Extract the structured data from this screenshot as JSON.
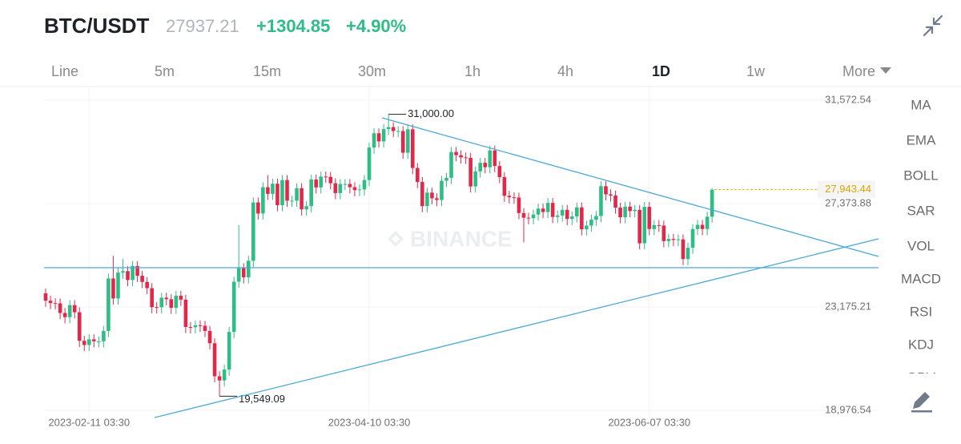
{
  "header": {
    "pair": "BTC/USDT",
    "last_price": "27937.21",
    "change": "+1304.85",
    "change_percent": "+4.90%"
  },
  "tabs": [
    "Line",
    "5m",
    "15m",
    "30m",
    "1h",
    "4h",
    "1D",
    "1w",
    "More"
  ],
  "active_tab": 6,
  "indicators": [
    "MA",
    "EMA",
    "BOLL",
    "SAR",
    "VOL",
    "MACD",
    "RSI",
    "KDJ",
    "OBV"
  ],
  "watermark": "BINANCE",
  "chart_data": {
    "type": "candlestick",
    "categories": [
      null,
      null,
      null,
      null,
      null,
      null,
      null,
      null,
      null,
      "2023-02-11 03:30",
      null,
      null,
      null,
      null,
      null,
      null,
      null,
      null,
      null,
      null,
      null,
      null,
      null,
      null,
      null,
      null,
      null,
      null,
      null,
      null,
      null,
      null,
      null,
      null,
      null,
      null,
      null,
      null,
      null,
      null,
      null,
      null,
      null,
      null,
      null,
      null,
      null,
      null,
      null,
      null,
      null,
      null,
      null,
      null,
      null,
      null,
      null,
      null,
      null,
      null,
      null,
      null,
      null,
      null,
      null,
      null,
      null,
      "2023-04-10 03:30",
      null,
      null,
      null,
      null,
      null,
      null,
      null,
      null,
      null,
      null,
      null,
      null,
      null,
      null,
      null,
      null,
      null,
      null,
      null,
      null,
      null,
      null,
      null,
      null,
      null,
      null,
      null,
      null,
      null,
      null,
      null,
      null,
      null,
      null,
      null,
      null,
      null,
      null,
      null,
      null,
      null,
      null,
      null,
      null,
      null,
      null,
      null,
      null,
      null,
      null,
      null,
      null,
      null,
      null,
      null,
      null,
      null,
      "2023-06-07 03:30",
      null,
      null,
      null,
      null,
      null,
      null,
      null,
      null,
      null,
      null,
      null,
      null,
      null
    ],
    "open": [
      23730,
      23430,
      23330,
      23320,
      22930,
      22760,
      23250,
      22960,
      21800,
      21630,
      21860,
      21780,
      21780,
      22200,
      24330,
      23520,
      24570,
      24630,
      24270,
      24840,
      24440,
      24190,
      23940,
      23170,
      23160,
      23550,
      23490,
      23140,
      23630,
      23470,
      22360,
      22350,
      22430,
      22410,
      22200,
      21700,
      20360,
      20190,
      20630,
      22160,
      24200,
      24750,
      24380,
      25050,
      27420,
      26970,
      28040,
      27770,
      28180,
      27310,
      28330,
      27490,
      27490,
      28000,
      27140,
      27270,
      28350,
      28030,
      28470,
      28460,
      28200,
      27800,
      28170,
      28170,
      28040,
      27920,
      27950,
      28330,
      29650,
      30230,
      29900,
      30400,
      30480,
      30320,
      30320,
      29440,
      30390,
      28820,
      28250,
      27270,
      27820,
      27590,
      27520,
      28300,
      28420,
      29470,
      29340,
      29250,
      29230,
      28070,
      28680,
      29030,
      28850,
      29530,
      28900,
      28450,
      27690,
      27630,
      27620,
      26990,
      26800,
      26780,
      26930,
      27170,
      27030,
      27400,
      26830,
      26890,
      27120,
      26750,
      26850,
      27220,
      26330,
      26480,
      26720,
      26870,
      28080,
      27750,
      27700,
      27210,
      26820,
      27250,
      27070,
      27120,
      25760,
      27240,
      26340,
      26500,
      26480,
      25850,
      25940,
      25900,
      25920,
      25120,
      25580,
      26340,
      26510,
      26340,
      26840
    ],
    "high": [
      23930,
      23630,
      23530,
      23520,
      23130,
      23450,
      23450,
      23160,
      22000,
      22060,
      22060,
      21980,
      22400,
      24530,
      25250,
      24770,
      25120,
      24830,
      25040,
      25040,
      24640,
      24390,
      24140,
      23370,
      23750,
      23750,
      23690,
      23830,
      23830,
      23670,
      22560,
      22630,
      22630,
      22610,
      22400,
      21900,
      20560,
      20830,
      22360,
      24400,
      26500,
      24950,
      25250,
      27620,
      27620,
      28240,
      28530,
      28380,
      28380,
      28530,
      28530,
      27690,
      28200,
      28200,
      27470,
      28550,
      28550,
      28670,
      28670,
      28660,
      28400,
      28370,
      28370,
      28370,
      28240,
      28150,
      28530,
      29850,
      30430,
      30430,
      30600,
      31000,
      30680,
      30520,
      30520,
      30590,
      30590,
      29020,
      28450,
      28020,
      28020,
      27790,
      28500,
      28620,
      29670,
      29670,
      29540,
      29450,
      29430,
      28880,
      29230,
      29230,
      29730,
      29730,
      29100,
      28650,
      27890,
      27830,
      27820,
      27190,
      27000,
      27130,
      27370,
      27370,
      27600,
      27600,
      27090,
      27320,
      27320,
      27050,
      27420,
      27420,
      26680,
      26920,
      27070,
      28280,
      28280,
      27950,
      27900,
      27410,
      27450,
      27450,
      27320,
      27320,
      27440,
      27440,
      26700,
      26700,
      26680,
      26140,
      26140,
      26120,
      26120,
      25780,
      26540,
      26710,
      26710,
      27040,
      28000
    ],
    "low": [
      23180,
      23080,
      23070,
      22680,
      22510,
      22510,
      22710,
      21550,
      21380,
      21380,
      21530,
      21530,
      21530,
      21950,
      23270,
      23270,
      24320,
      24020,
      24020,
      24190,
      23940,
      23690,
      22920,
      22910,
      22910,
      23240,
      22890,
      22890,
      23220,
      22110,
      22100,
      22100,
      22160,
      21950,
      21450,
      20110,
      19549.09,
      19940,
      20380,
      21910,
      23950,
      24130,
      24130,
      24800,
      26720,
      26720,
      27520,
      27520,
      27060,
      27060,
      27240,
      27240,
      27240,
      26890,
      26890,
      27020,
      27780,
      27780,
      28210,
      27950,
      27550,
      27550,
      27920,
      27790,
      27670,
      27670,
      27700,
      28080,
      29400,
      29650,
      29650,
      30150,
      30070,
      30070,
      29190,
      29190,
      28570,
      28000,
      27020,
      27020,
      27340,
      27270,
      27270,
      28050,
      28170,
      29090,
      29000,
      28980,
      27820,
      27820,
      28430,
      28600,
      28600,
      28650,
      28200,
      27440,
      27380,
      27370,
      26740,
      25800,
      26530,
      26530,
      26680,
      26780,
      26780,
      26580,
      26580,
      26640,
      26500,
      26500,
      26600,
      26080,
      26080,
      26230,
      26470,
      26620,
      27500,
      27450,
      26960,
      26570,
      26570,
      26820,
      26820,
      25510,
      25510,
      26090,
      26090,
      26230,
      25600,
      25600,
      25650,
      25650,
      24870,
      24870,
      25330,
      26090,
      26090,
      26090,
      26600
    ],
    "close": [
      23430,
      23330,
      23320,
      22930,
      22760,
      23250,
      22960,
      21800,
      21630,
      21860,
      21780,
      21780,
      22200,
      24330,
      23520,
      24570,
      24630,
      24270,
      24840,
      24440,
      24190,
      23940,
      23170,
      23160,
      23550,
      23490,
      23140,
      23630,
      23470,
      22360,
      22350,
      22430,
      22410,
      22200,
      21700,
      20360,
      20190,
      20630,
      22160,
      24200,
      24750,
      24380,
      25050,
      27420,
      26970,
      28040,
      27770,
      28180,
      27310,
      28330,
      27490,
      27490,
      28000,
      27140,
      27270,
      28350,
      28030,
      28470,
      28460,
      28200,
      27800,
      28170,
      28170,
      28040,
      27920,
      27950,
      28330,
      29650,
      30230,
      29900,
      30400,
      30480,
      30320,
      30320,
      29440,
      30390,
      28820,
      28250,
      27270,
      27820,
      27590,
      27520,
      28300,
      28420,
      29470,
      29340,
      29250,
      29230,
      28070,
      28680,
      29030,
      28850,
      29530,
      28900,
      28450,
      27690,
      27630,
      27620,
      26990,
      26800,
      26780,
      26930,
      27170,
      27030,
      27400,
      26830,
      26890,
      27120,
      26750,
      26850,
      27220,
      26330,
      26480,
      26720,
      26870,
      28080,
      27750,
      27700,
      27210,
      26820,
      27250,
      27070,
      27120,
      25760,
      27240,
      26340,
      26500,
      26480,
      25850,
      25940,
      25900,
      25920,
      25120,
      25580,
      26340,
      26510,
      26340,
      26840,
      27937.21
    ],
    "up_color": "#2ebd85",
    "down_color": "#e0294a",
    "ylim": [
      18715,
      32127
    ],
    "yticks": [
      {
        "value": 18976.54,
        "label": "18,976.54"
      },
      {
        "value": 23175.21,
        "label": "23,175.21"
      },
      {
        "value": 27373.88,
        "label": "27,373.88"
      },
      {
        "value": 31572.54,
        "label": "31,572.54"
      }
    ],
    "grid": true,
    "annotations": [
      {
        "value": 31000,
        "label": "31,000.00",
        "field": "high"
      },
      {
        "value": 19549.09,
        "label": "19,549.09",
        "field": "low"
      }
    ],
    "price_line": {
      "value": 27943.44,
      "label": "27,943.44",
      "color": "#f0b90b"
    }
  }
}
